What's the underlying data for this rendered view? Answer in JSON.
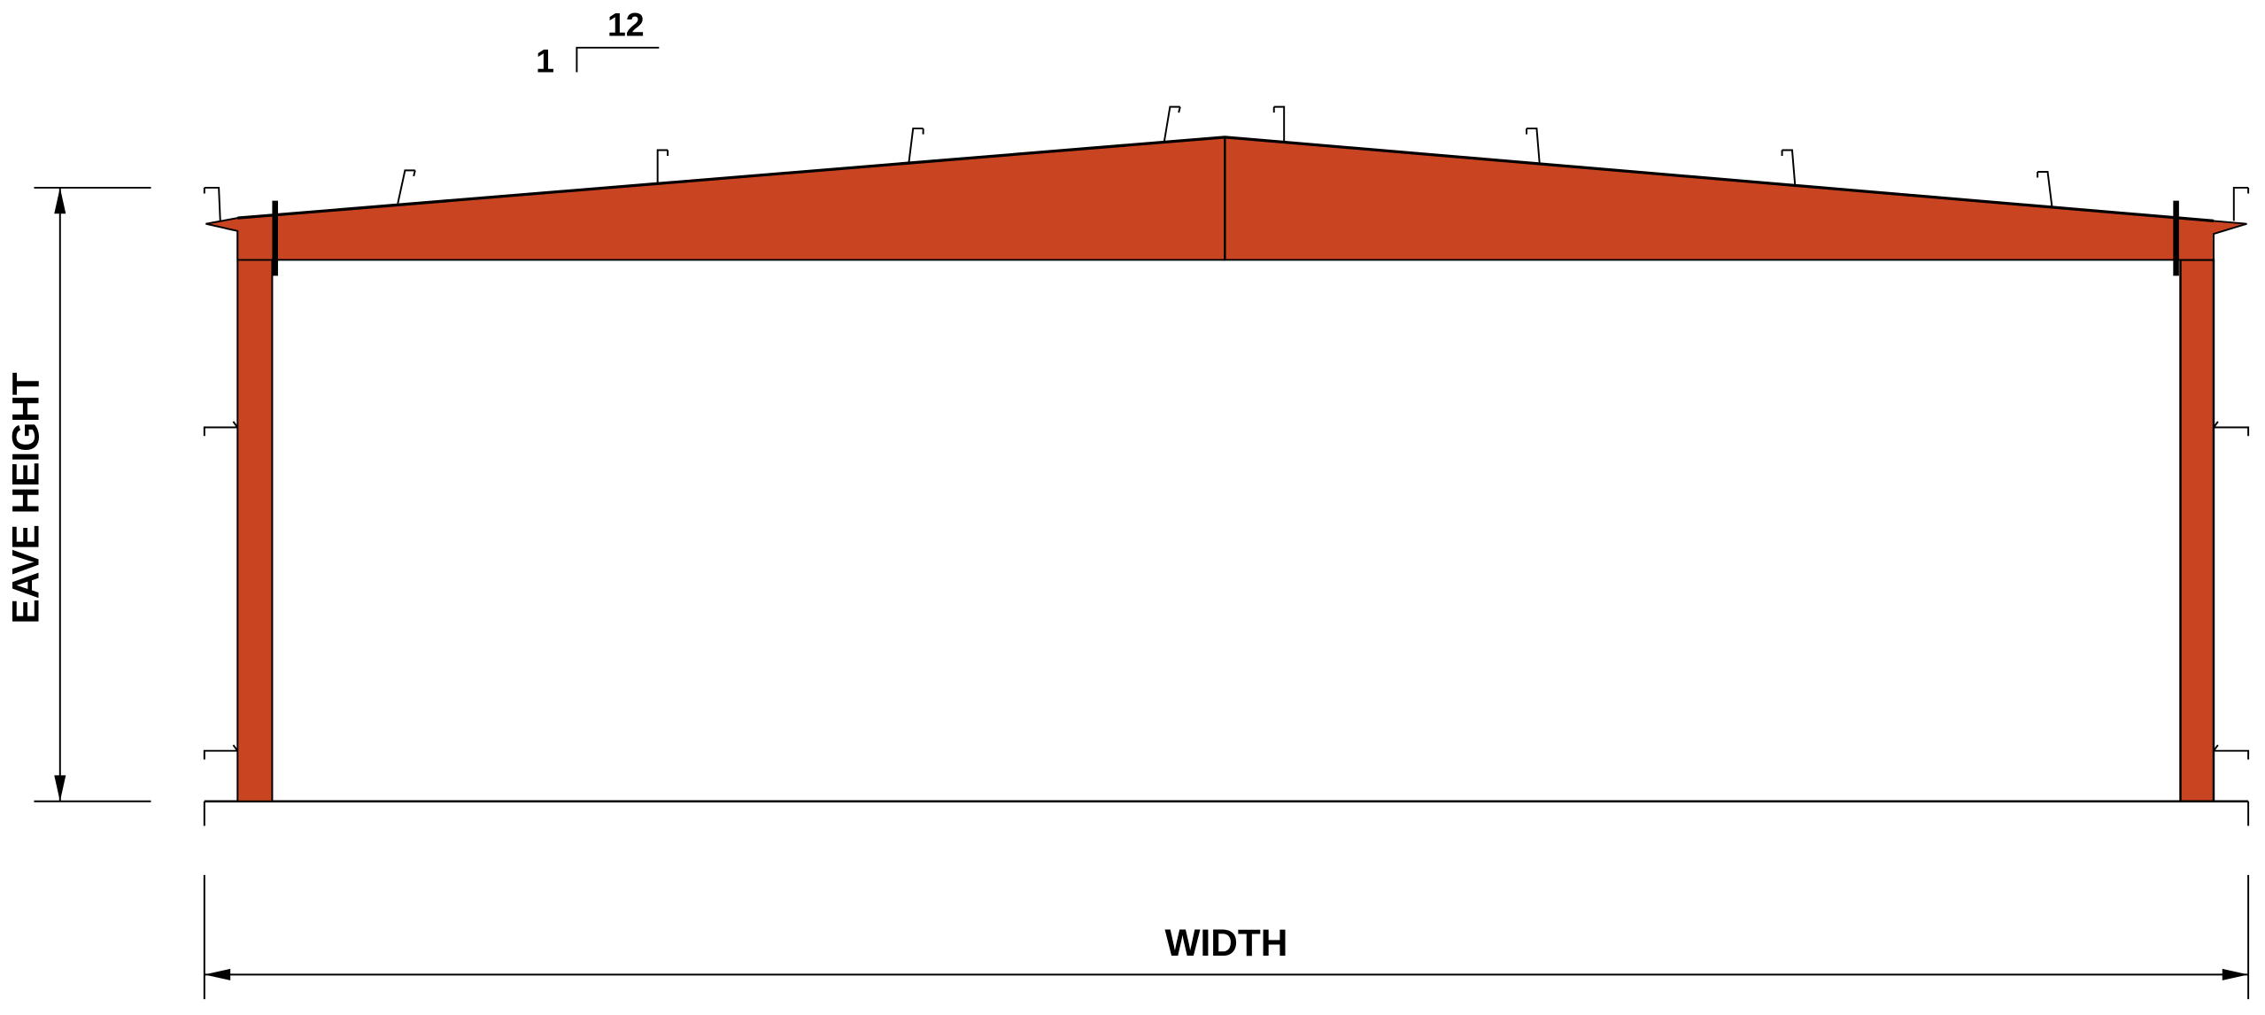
{
  "labels": {
    "slope_rise": "1",
    "slope_run": "12",
    "eave_height": "EAVE HEIGHT",
    "width": "WIDTH"
  },
  "colors": {
    "frame": "#C94521",
    "line": "#000000",
    "background": "#FFFFFF"
  }
}
